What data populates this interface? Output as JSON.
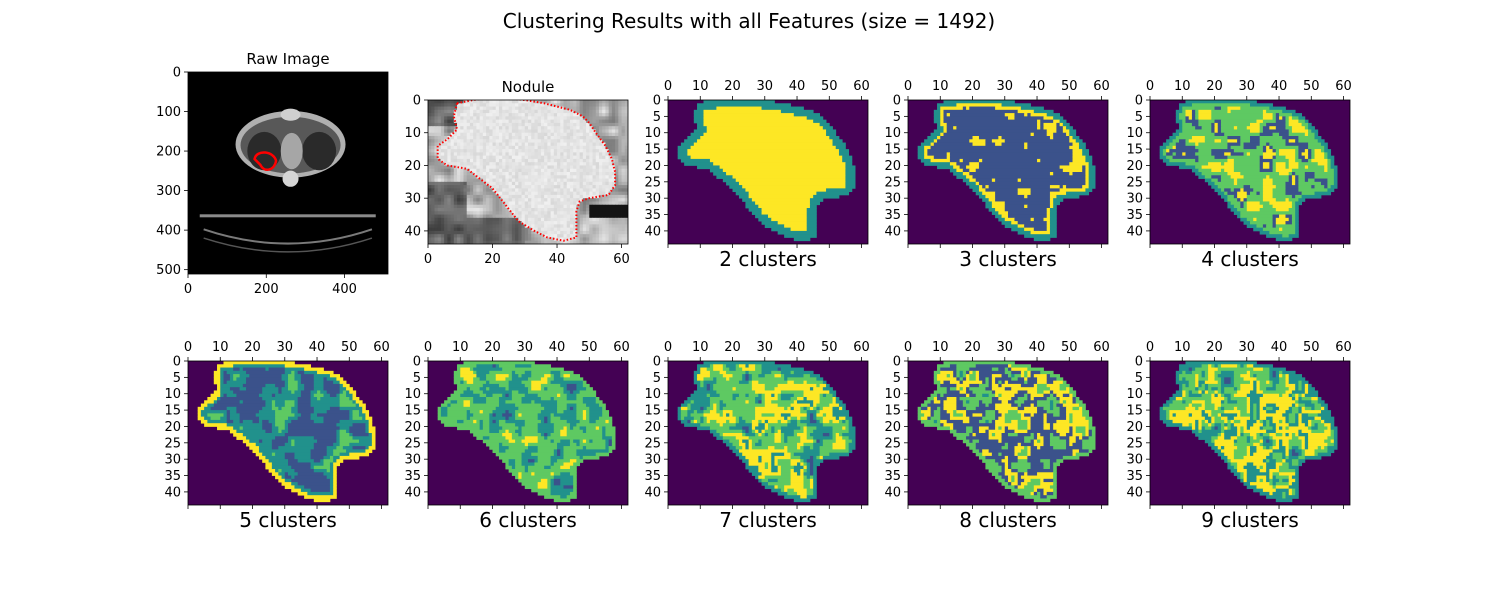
{
  "figure": {
    "title": "Clustering Results with all Features (size = 1492)"
  },
  "colors": {
    "viridis": [
      "#440154",
      "#3b528b",
      "#21918c",
      "#5ec962",
      "#fde725"
    ],
    "contour": "#ff0000",
    "ct_bg": "#000000"
  },
  "chart_data": [
    {
      "type": "heatmap",
      "title": "Raw Image",
      "xlabel": "",
      "image": "ct-scan",
      "xlim": [
        0,
        511
      ],
      "ylim": [
        511,
        0
      ],
      "xticks": [
        0,
        200,
        400
      ],
      "yticks": [
        0,
        100,
        200,
        300,
        400,
        500
      ],
      "xticks_position": "bottom",
      "annotation": "red nodule contour near (190, 230)"
    },
    {
      "type": "heatmap",
      "title": "Nodule",
      "xlabel": "",
      "image": "nodule-grayscale",
      "xlim": [
        0,
        62
      ],
      "ylim": [
        44,
        0
      ],
      "xticks": [
        0,
        20,
        40,
        60
      ],
      "yticks": [
        0,
        10,
        20,
        30,
        40
      ],
      "xticks_position": "bottom",
      "annotation": "red dotted nodule contour"
    },
    {
      "type": "heatmap",
      "title": "",
      "xlabel": "2 clusters",
      "n_clusters": 2,
      "xlim": [
        0,
        62
      ],
      "ylim": [
        44,
        0
      ],
      "xticks": [
        0,
        10,
        20,
        30,
        40,
        50,
        60
      ],
      "yticks": [
        0,
        5,
        10,
        15,
        20,
        25,
        30,
        35,
        40
      ],
      "xticks_position": "top"
    },
    {
      "type": "heatmap",
      "title": "",
      "xlabel": "3 clusters",
      "n_clusters": 3,
      "xlim": [
        0,
        62
      ],
      "ylim": [
        44,
        0
      ],
      "xticks": [
        0,
        10,
        20,
        30,
        40,
        50,
        60
      ],
      "yticks": [
        0,
        5,
        10,
        15,
        20,
        25,
        30,
        35,
        40
      ],
      "xticks_position": "top"
    },
    {
      "type": "heatmap",
      "title": "",
      "xlabel": "4 clusters",
      "n_clusters": 4,
      "xlim": [
        0,
        62
      ],
      "ylim": [
        44,
        0
      ],
      "xticks": [
        0,
        10,
        20,
        30,
        40,
        50,
        60
      ],
      "yticks": [
        0,
        5,
        10,
        15,
        20,
        25,
        30,
        35,
        40
      ],
      "xticks_position": "top"
    },
    {
      "type": "heatmap",
      "title": "",
      "xlabel": "5 clusters",
      "n_clusters": 5,
      "xlim": [
        0,
        62
      ],
      "ylim": [
        44,
        0
      ],
      "xticks": [
        0,
        10,
        20,
        30,
        40,
        50,
        60
      ],
      "yticks": [
        0,
        5,
        10,
        15,
        20,
        25,
        30,
        35,
        40
      ],
      "xticks_position": "top"
    },
    {
      "type": "heatmap",
      "title": "",
      "xlabel": "6 clusters",
      "n_clusters": 6,
      "xlim": [
        0,
        62
      ],
      "ylim": [
        44,
        0
      ],
      "xticks": [
        0,
        10,
        20,
        30,
        40,
        50,
        60
      ],
      "yticks": [
        0,
        5,
        10,
        15,
        20,
        25,
        30,
        35,
        40
      ],
      "xticks_position": "top"
    },
    {
      "type": "heatmap",
      "title": "",
      "xlabel": "7 clusters",
      "n_clusters": 7,
      "xlim": [
        0,
        62
      ],
      "ylim": [
        44,
        0
      ],
      "xticks": [
        0,
        10,
        20,
        30,
        40,
        50,
        60
      ],
      "yticks": [
        0,
        5,
        10,
        15,
        20,
        25,
        30,
        35,
        40
      ],
      "xticks_position": "top"
    },
    {
      "type": "heatmap",
      "title": "",
      "xlabel": "8 clusters",
      "n_clusters": 8,
      "xlim": [
        0,
        62
      ],
      "ylim": [
        44,
        0
      ],
      "xticks": [
        0,
        10,
        20,
        30,
        40,
        50,
        60
      ],
      "yticks": [
        0,
        5,
        10,
        15,
        20,
        25,
        30,
        35,
        40
      ],
      "xticks_position": "top"
    },
    {
      "type": "heatmap",
      "title": "",
      "xlabel": "9 clusters",
      "n_clusters": 9,
      "xlim": [
        0,
        62
      ],
      "ylim": [
        44,
        0
      ],
      "xticks": [
        0,
        10,
        20,
        30,
        40,
        50,
        60
      ],
      "yticks": [
        0,
        5,
        10,
        15,
        20,
        25,
        30,
        35,
        40
      ],
      "xticks_position": "top"
    }
  ]
}
